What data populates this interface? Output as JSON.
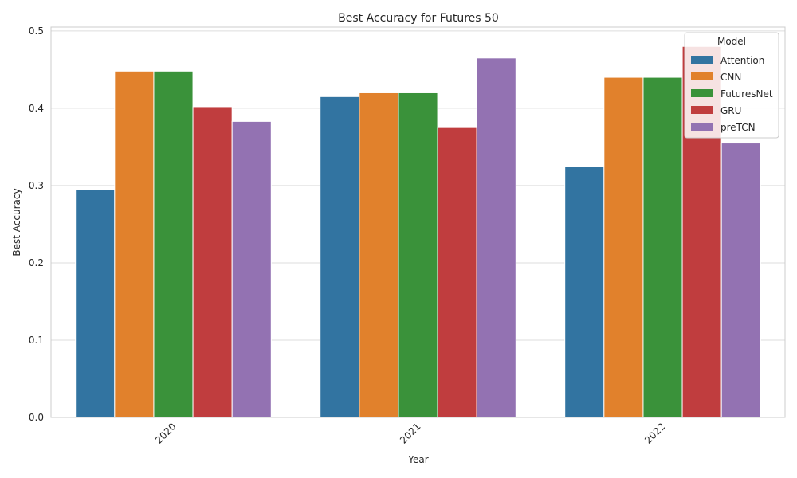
{
  "chart_data": {
    "type": "bar",
    "title": "Best Accuracy for Futures 50",
    "xlabel": "Year",
    "ylabel": "Best Accuracy",
    "categories": [
      "2020",
      "2021",
      "2022"
    ],
    "ylim": [
      0,
      0.505
    ],
    "yticks": [
      "0.0",
      "0.1",
      "0.2",
      "0.3",
      "0.4",
      "0.5"
    ],
    "grid": true,
    "legend": {
      "title": "Model",
      "placement": "top-right"
    },
    "series": [
      {
        "name": "Attention",
        "color": "#3274a1",
        "values": [
          0.295,
          0.415,
          0.325
        ]
      },
      {
        "name": "CNN",
        "color": "#e1812c",
        "values": [
          0.448,
          0.42,
          0.44
        ]
      },
      {
        "name": "FuturesNet",
        "color": "#3a923a",
        "values": [
          0.448,
          0.42,
          0.44
        ]
      },
      {
        "name": "GRU",
        "color": "#c03d3e",
        "values": [
          0.402,
          0.375,
          0.48
        ]
      },
      {
        "name": "preTCN",
        "color": "#9372b2",
        "values": [
          0.383,
          0.465,
          0.355
        ]
      }
    ]
  }
}
